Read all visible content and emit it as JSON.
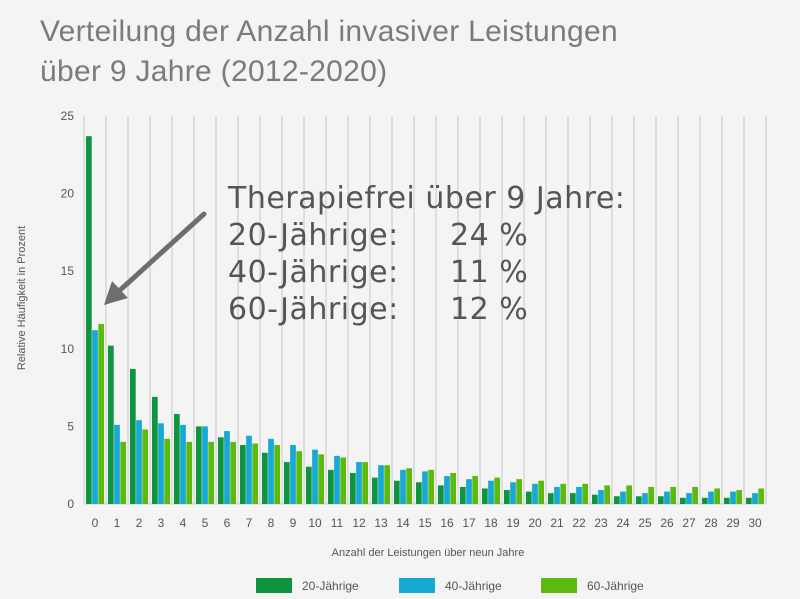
{
  "title": {
    "line1": "Verteilung der Anzahl invasiver Leistungen",
    "line2": "über 9 Jahre (2012-2020)"
  },
  "annotation": {
    "heading": "Therapiefrei über 9 Jahre:",
    "rows": [
      {
        "label": "20-Jährige:",
        "value": "24 %"
      },
      {
        "label": "40-Jährige:",
        "value": "11 %"
      },
      {
        "label": "60-Jährige:",
        "value": "12 %"
      }
    ]
  },
  "colors": {
    "s20": "#0f9440",
    "s40": "#17a8d4",
    "s60": "#5cba0f",
    "grid": "#d6d6d6",
    "arrow": "#6e6e6e"
  },
  "chart_data": {
    "type": "bar",
    "title": "Verteilung der Anzahl invasiver Leistungen über 9 Jahre (2012-2020)",
    "xlabel": "Anzahl der Leistungen über neun Jahre",
    "ylabel": "Relative Häufigkeit in Prozent",
    "ylim": [
      0,
      25
    ],
    "yticks": [
      0,
      5,
      10,
      15,
      20,
      25
    ],
    "grid": "vertical",
    "legend_position": "bottom",
    "categories": [
      "0",
      "1",
      "2",
      "3",
      "4",
      "5",
      "6",
      "7",
      "8",
      "9",
      "10",
      "11",
      "12",
      "13",
      "14",
      "15",
      "16",
      "17",
      "18",
      "19",
      "20",
      "21",
      "22",
      "23",
      "24",
      "25",
      "26",
      "27",
      "28",
      "29",
      "30"
    ],
    "series": [
      {
        "name": "20-Jährige",
        "values": [
          23.7,
          10.2,
          8.7,
          6.9,
          5.8,
          5.0,
          4.3,
          3.8,
          3.3,
          2.7,
          2.4,
          2.2,
          2.0,
          1.7,
          1.5,
          1.4,
          1.2,
          1.1,
          1.0,
          0.9,
          0.8,
          0.7,
          0.7,
          0.6,
          0.5,
          0.5,
          0.5,
          0.4,
          0.4,
          0.4,
          0.4
        ]
      },
      {
        "name": "40-Jährige",
        "values": [
          11.2,
          5.1,
          5.4,
          5.2,
          5.1,
          5.0,
          4.7,
          4.4,
          4.2,
          3.8,
          3.5,
          3.1,
          2.7,
          2.5,
          2.2,
          2.1,
          1.8,
          1.6,
          1.5,
          1.4,
          1.3,
          1.1,
          1.1,
          0.9,
          0.8,
          0.7,
          0.8,
          0.7,
          0.8,
          0.8,
          0.7
        ]
      },
      {
        "name": "60-Jährige",
        "values": [
          11.6,
          4.0,
          4.8,
          4.2,
          4.0,
          4.0,
          4.0,
          3.9,
          3.8,
          3.4,
          3.2,
          3.0,
          2.7,
          2.5,
          2.3,
          2.2,
          2.0,
          1.8,
          1.7,
          1.6,
          1.5,
          1.3,
          1.3,
          1.2,
          1.2,
          1.1,
          1.1,
          1.1,
          1.0,
          0.9,
          1.0
        ]
      }
    ]
  }
}
